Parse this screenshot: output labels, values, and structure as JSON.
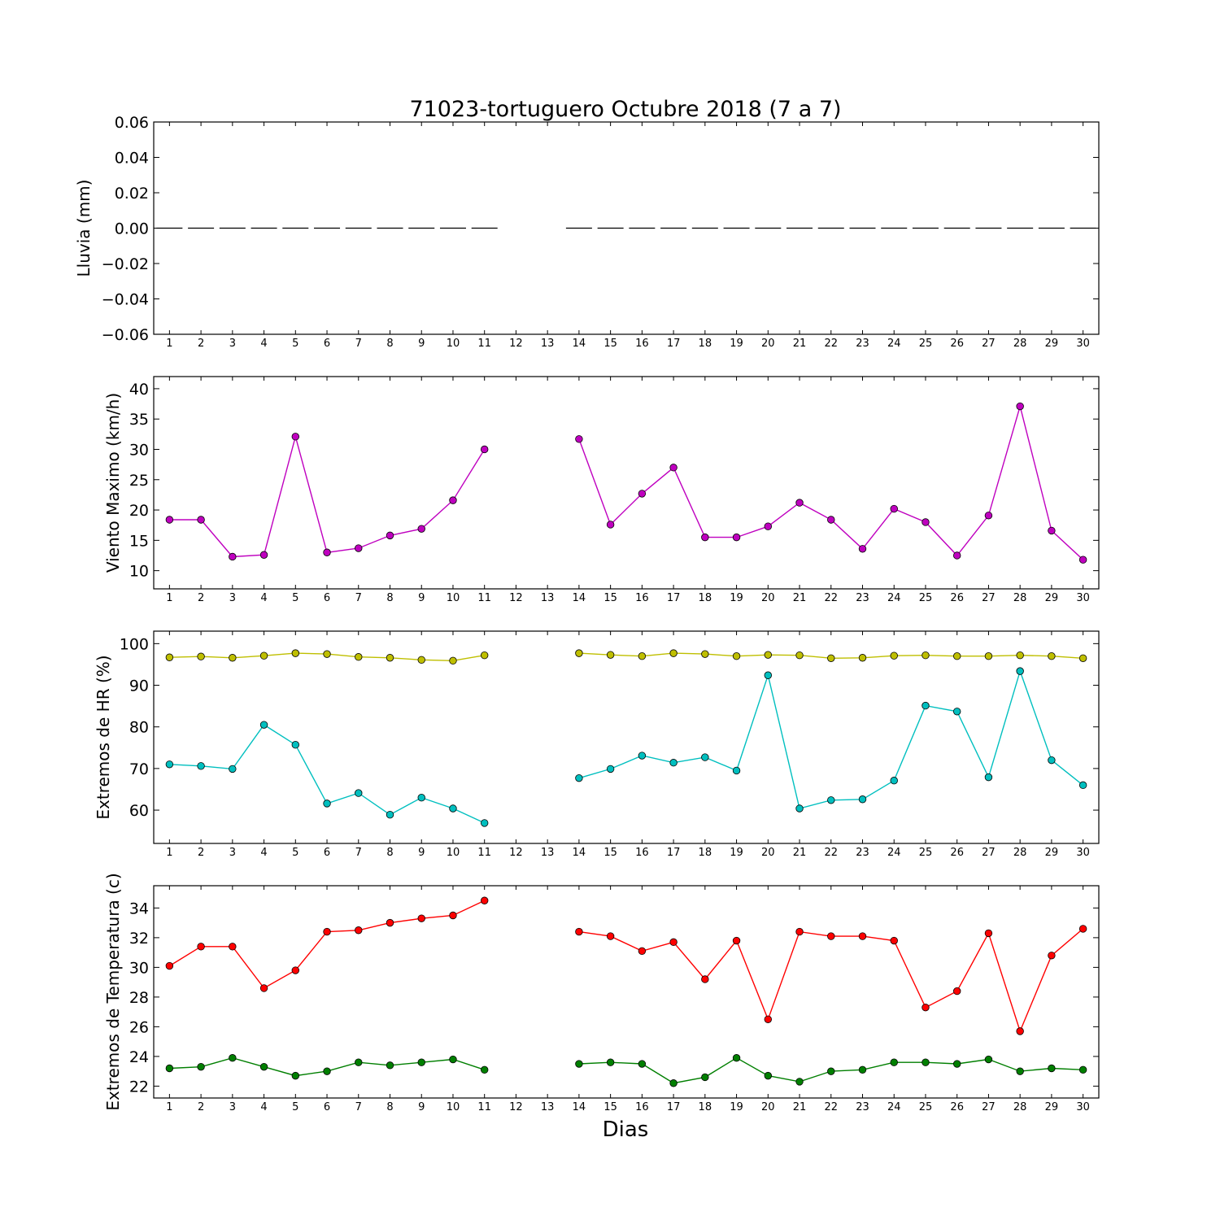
{
  "chart_data": {
    "type": "line",
    "title": "71023-tortuguero Octubre 2018  (7 a 7)",
    "xlabel": "Dias",
    "x_ticks": [
      1,
      2,
      3,
      4,
      5,
      6,
      7,
      8,
      9,
      10,
      11,
      12,
      13,
      14,
      15,
      16,
      17,
      18,
      19,
      20,
      21,
      22,
      23,
      24,
      25,
      26,
      27,
      28,
      29,
      30
    ],
    "panels": [
      {
        "id": "lluvia",
        "ylabel": "Lluvia (mm)",
        "ylim": [
          -0.06,
          0.06
        ],
        "yticks": [
          -0.06,
          -0.04,
          -0.02,
          0.0,
          0.02,
          0.04,
          0.06
        ],
        "ytick_labels": [
          "−0.06",
          "−0.04",
          "−0.02",
          "0.00",
          "0.02",
          "0.04",
          "0.06"
        ],
        "series": [
          {
            "style": "dashes",
            "color": "#000000",
            "x": [
              1,
              2,
              3,
              4,
              5,
              6,
              7,
              8,
              9,
              10,
              11,
              14,
              15,
              16,
              17,
              18,
              19,
              20,
              21,
              22,
              23,
              24,
              25,
              26,
              27,
              28,
              29,
              30
            ],
            "y": [
              0,
              0,
              0,
              0,
              0,
              0,
              0,
              0,
              0,
              0,
              0,
              0,
              0,
              0,
              0,
              0,
              0,
              0,
              0,
              0,
              0,
              0,
              0,
              0,
              0,
              0,
              0,
              0
            ]
          }
        ]
      },
      {
        "id": "viento",
        "ylabel": "Viento Maximo (km/h)",
        "ylim": [
          7,
          42
        ],
        "yticks": [
          10,
          15,
          20,
          25,
          30,
          35,
          40
        ],
        "ytick_labels": [
          "10",
          "15",
          "20",
          "25",
          "30",
          "35",
          "40"
        ],
        "series": [
          {
            "style": "line-marker",
            "color": "#bf00bf",
            "segments": [
              {
                "x": [
                  1,
                  2,
                  3,
                  4,
                  5,
                  6,
                  7,
                  8,
                  9,
                  10,
                  11
                ],
                "y": [
                  18.4,
                  18.4,
                  12.3,
                  12.6,
                  32.1,
                  13.0,
                  13.7,
                  15.8,
                  16.9,
                  21.6,
                  30.0
                ]
              },
              {
                "x": [
                  14,
                  15,
                  16,
                  17,
                  18,
                  19,
                  20,
                  21,
                  22,
                  23,
                  24,
                  25,
                  26,
                  27,
                  28,
                  29,
                  30
                ],
                "y": [
                  31.7,
                  17.6,
                  22.7,
                  27.0,
                  15.5,
                  15.5,
                  17.3,
                  21.2,
                  18.4,
                  13.6,
                  20.2,
                  18.0,
                  12.5,
                  19.1,
                  37.1,
                  16.6,
                  11.8
                ]
              }
            ]
          }
        ]
      },
      {
        "id": "hr",
        "ylabel": "Extremos de HR (%)",
        "ylim": [
          52,
          103
        ],
        "yticks": [
          60,
          70,
          80,
          90,
          100
        ],
        "ytick_labels": [
          "60",
          "70",
          "80",
          "90",
          "100"
        ],
        "series": [
          {
            "style": "line-marker",
            "color": "#bfbf00",
            "segments": [
              {
                "x": [
                  1,
                  2,
                  3,
                  4,
                  5,
                  6,
                  7,
                  8,
                  9,
                  10,
                  11
                ],
                "y": [
                  96.7,
                  96.9,
                  96.6,
                  97.1,
                  97.7,
                  97.5,
                  96.8,
                  96.6,
                  96.1,
                  95.9,
                  97.2
                ]
              },
              {
                "x": [
                  14,
                  15,
                  16,
                  17,
                  18,
                  19,
                  20,
                  21,
                  22,
                  23,
                  24,
                  25,
                  26,
                  27,
                  28,
                  29,
                  30
                ],
                "y": [
                  97.7,
                  97.3,
                  97.0,
                  97.7,
                  97.5,
                  97.0,
                  97.3,
                  97.2,
                  96.5,
                  96.6,
                  97.1,
                  97.2,
                  97.0,
                  97.0,
                  97.2,
                  97.0,
                  96.5
                ]
              }
            ]
          },
          {
            "style": "line-marker",
            "color": "#00bfbf",
            "segments": [
              {
                "x": [
                  1,
                  2,
                  3,
                  4,
                  5,
                  6,
                  7,
                  8,
                  9,
                  10,
                  11
                ],
                "y": [
                  71.0,
                  70.6,
                  69.9,
                  80.5,
                  75.7,
                  61.6,
                  64.1,
                  58.9,
                  63.0,
                  60.4,
                  56.9
                ]
              },
              {
                "x": [
                  14,
                  15,
                  16,
                  17,
                  18,
                  19,
                  20,
                  21,
                  22,
                  23,
                  24,
                  25,
                  26,
                  27,
                  28,
                  29,
                  30
                ],
                "y": [
                  67.7,
                  69.9,
                  73.1,
                  71.4,
                  72.7,
                  69.5,
                  92.4,
                  60.4,
                  62.4,
                  62.6,
                  67.1,
                  85.1,
                  83.7,
                  67.9,
                  93.4,
                  72.0,
                  66.0
                ]
              }
            ]
          }
        ]
      },
      {
        "id": "temperatura",
        "ylabel": "Extremos de Temperatura (c)",
        "ylim": [
          21.2,
          35.5
        ],
        "yticks": [
          22,
          24,
          26,
          28,
          30,
          32,
          34
        ],
        "ytick_labels": [
          "22",
          "24",
          "26",
          "28",
          "30",
          "32",
          "34"
        ],
        "series": [
          {
            "style": "line-marker",
            "color": "#ff0000",
            "segments": [
              {
                "x": [
                  1,
                  2,
                  3,
                  4,
                  5,
                  6,
                  7,
                  8,
                  9,
                  10,
                  11
                ],
                "y": [
                  30.1,
                  31.4,
                  31.4,
                  28.6,
                  29.8,
                  32.4,
                  32.5,
                  33.0,
                  33.3,
                  33.5,
                  34.5
                ]
              },
              {
                "x": [
                  14,
                  15,
                  16,
                  17,
                  18,
                  19,
                  20,
                  21,
                  22,
                  23,
                  24,
                  25,
                  26,
                  27,
                  28,
                  29,
                  30
                ],
                "y": [
                  32.4,
                  32.1,
                  31.1,
                  31.7,
                  29.2,
                  31.8,
                  26.5,
                  32.4,
                  32.1,
                  32.1,
                  31.8,
                  27.3,
                  28.4,
                  32.3,
                  25.7,
                  30.8,
                  32.6
                ]
              }
            ]
          },
          {
            "style": "line-marker",
            "color": "#007f00",
            "segments": [
              {
                "x": [
                  1,
                  2,
                  3,
                  4,
                  5,
                  6,
                  7,
                  8,
                  9,
                  10,
                  11
                ],
                "y": [
                  23.2,
                  23.3,
                  23.9,
                  23.3,
                  22.7,
                  23.0,
                  23.6,
                  23.4,
                  23.6,
                  23.8,
                  23.1
                ]
              },
              {
                "x": [
                  14,
                  15,
                  16,
                  17,
                  18,
                  19,
                  20,
                  21,
                  22,
                  23,
                  24,
                  25,
                  26,
                  27,
                  28,
                  29,
                  30
                ],
                "y": [
                  23.5,
                  23.6,
                  23.5,
                  22.2,
                  22.6,
                  23.9,
                  22.7,
                  22.3,
                  23.0,
                  23.1,
                  23.6,
                  23.6,
                  23.5,
                  23.8,
                  23.0,
                  23.2,
                  23.1
                ]
              }
            ]
          }
        ]
      }
    ]
  }
}
